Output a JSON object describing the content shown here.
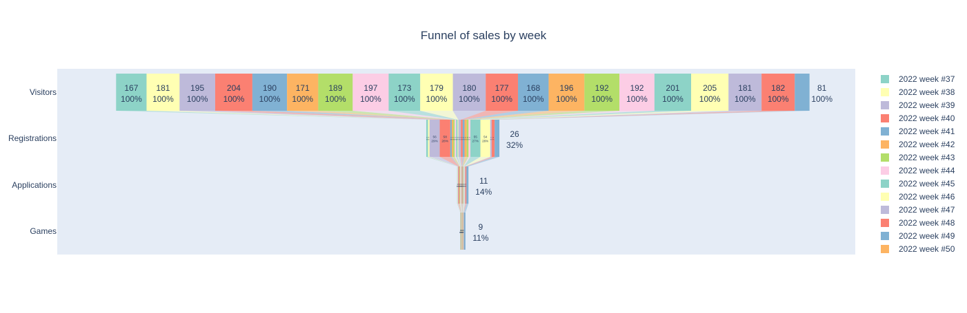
{
  "chart_data": {
    "type": "funnel",
    "title": "Funnel of sales by week",
    "stages": [
      "Visitors",
      "Registrations",
      "Applications",
      "Games"
    ],
    "textinfo": "value+percent initial",
    "legend_position": "right",
    "plot_background": "#e5ecf6",
    "series": [
      {
        "name": "2022 week #37",
        "color": "#8dd3c7",
        "values": [
          167,
          10,
          2,
          1
        ]
      },
      {
        "name": "2022 week #38",
        "color": "#ffffb3",
        "values": [
          181,
          8,
          2,
          1
        ]
      },
      {
        "name": "2022 week #39",
        "color": "#bebada",
        "values": [
          195,
          56,
          2,
          1
        ]
      },
      {
        "name": "2022 week #40",
        "color": "#fb8072",
        "values": [
          204,
          58,
          5,
          1
        ]
      },
      {
        "name": "2022 week #41",
        "color": "#80b1d3",
        "values": [
          190,
          8,
          1,
          1
        ]
      },
      {
        "name": "2022 week #42",
        "color": "#fdb462",
        "values": [
          171,
          8,
          2,
          1
        ]
      },
      {
        "name": "2022 week #43",
        "color": "#b3de69",
        "values": [
          189,
          8,
          2,
          1
        ]
      },
      {
        "name": "2022 week #44",
        "color": "#fccde5",
        "values": [
          197,
          8,
          3,
          1
        ]
      },
      {
        "name": "2022 week #45",
        "color": "#8dd3c7",
        "values": [
          173,
          8,
          2,
          1
        ]
      },
      {
        "name": "2022 week #46",
        "color": "#ffffb3",
        "values": [
          179,
          4,
          2,
          1
        ]
      },
      {
        "name": "2022 week #47",
        "color": "#bebada",
        "values": [
          180,
          14,
          2,
          1
        ]
      },
      {
        "name": "2022 week #48",
        "color": "#fb8072",
        "values": [
          177,
          10,
          2,
          1
        ]
      },
      {
        "name": "2022 week #49",
        "color": "#80b1d3",
        "values": [
          168,
          10,
          2,
          1
        ]
      },
      {
        "name": "2022 week #50",
        "color": "#fdb462",
        "values": [
          196,
          12,
          2,
          1
        ]
      },
      {
        "name": "",
        "color": "#b3de69",
        "values": [
          192,
          10,
          2,
          1
        ]
      },
      {
        "name": "",
        "color": "#fccde5",
        "values": [
          192,
          10,
          4,
          1
        ]
      },
      {
        "name": "",
        "color": "#8dd3c7",
        "values": [
          201,
          55,
          2,
          1
        ]
      },
      {
        "name": "",
        "color": "#ffffb3",
        "values": [
          205,
          54,
          2,
          1
        ]
      },
      {
        "name": "",
        "color": "#bebada",
        "values": [
          181,
          8,
          4,
          1
        ]
      },
      {
        "name": "",
        "color": "#fb8072",
        "values": [
          182,
          16,
          6,
          1
        ]
      },
      {
        "name": "",
        "color": "#80b1d3",
        "values": [
          81,
          26,
          11,
          9
        ]
      }
    ]
  }
}
